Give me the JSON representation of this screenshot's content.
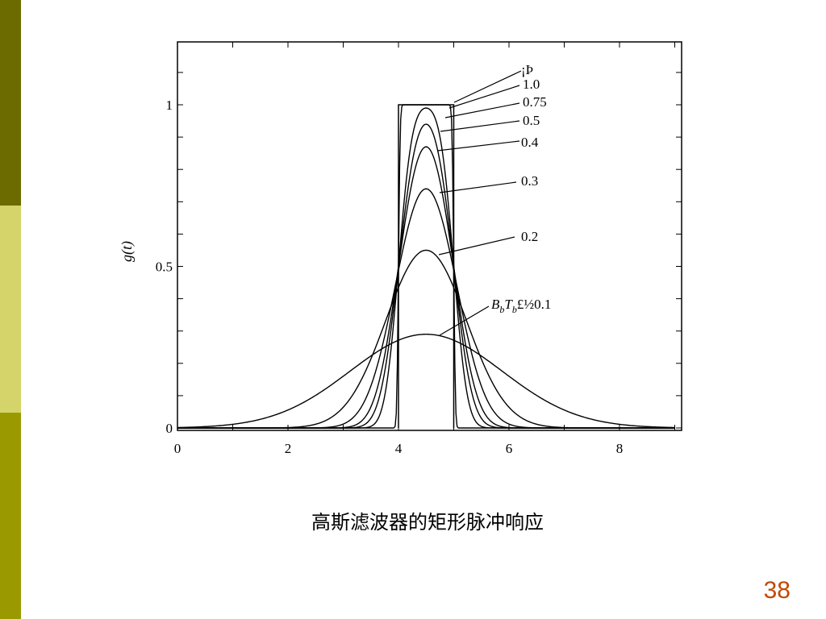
{
  "slide": {
    "caption": "高斯滤波器的矩形脉冲响应",
    "page_number": "38",
    "sidebar_colors": [
      "#6b6b00",
      "#d4d46a",
      "#9a9a00"
    ],
    "page_number_color": "#c04a00"
  },
  "chart_data": {
    "type": "line",
    "title": "",
    "xlabel": "",
    "ylabel": "g(t)",
    "xlim": [
      0,
      9
    ],
    "ylim": [
      0,
      1.2
    ],
    "x_ticks": [
      "0",
      "2",
      "4",
      "6",
      "8"
    ],
    "y_ticks": [
      "0",
      "0.5",
      "1"
    ],
    "grid": false,
    "legend": "inline-annotations",
    "pulse": {
      "start": 4,
      "end": 5,
      "height": 1.0
    },
    "center": 4.5,
    "series": [
      {
        "label": "1.0",
        "peak": 1.0
      },
      {
        "label": "0.75",
        "peak": 0.99
      },
      {
        "label": "0.5",
        "peak": 0.94
      },
      {
        "label": "0.4",
        "peak": 0.87
      },
      {
        "label": "0.3",
        "peak": 0.74
      },
      {
        "label": "0.2",
        "peak": 0.55
      },
      {
        "label": "BbTb = 0.1",
        "peak": 0.29
      }
    ],
    "annotations": {
      "infinity": "¡Þ",
      "labels": [
        "1.0",
        "0.75",
        "0.5",
        "0.4",
        "0.3",
        "0.2"
      ],
      "bt_parts": [
        "B",
        "b",
        "T",
        "b",
        "£½0.1"
      ]
    },
    "color": "#000000"
  }
}
